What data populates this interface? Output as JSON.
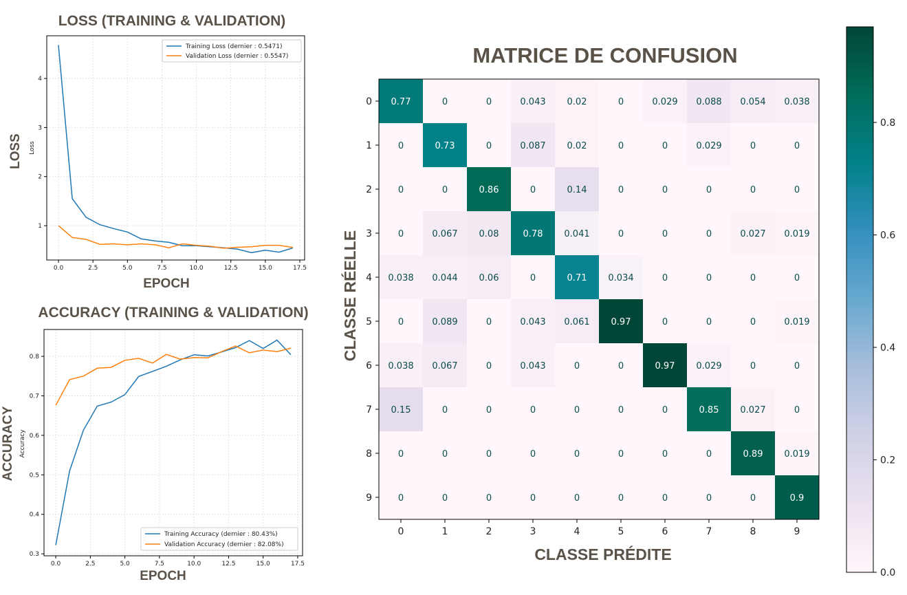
{
  "colors": {
    "training": "#1f77b4",
    "validation": "#ff7f0e",
    "title": "#5a5248",
    "cmap_low": "#fff7fb",
    "cmap_mid": "#3690c0",
    "cmap_high": "#014636"
  },
  "chart_data": [
    {
      "type": "line",
      "title": "LOSS (TRAINING & VALIDATION)",
      "xlabel": "EPOCH",
      "ylabel": "LOSS",
      "ylabel_small": "Loss",
      "xlim": [
        -0.85,
        17.85
      ],
      "ylim": [
        0.3,
        4.87
      ],
      "xticks": [
        0.0,
        2.5,
        5.0,
        7.5,
        10.0,
        12.5,
        15.0,
        17.5
      ],
      "xtick_labels": [
        "0.0",
        "2.5",
        "5.0",
        "7.5",
        "10.0",
        "12.5",
        "15.0",
        "17.5"
      ],
      "yticks": [
        1,
        2,
        3,
        4
      ],
      "ytick_labels": [
        "1",
        "2",
        "3",
        "4"
      ],
      "grid": true,
      "legend": "top-right",
      "x": [
        0,
        1,
        2,
        3,
        4,
        5,
        6,
        7,
        8,
        9,
        10,
        11,
        12,
        13,
        14,
        15,
        16,
        17
      ],
      "series": [
        {
          "name": "Training Loss (dernier : 0.5471)",
          "values": [
            4.68,
            1.55,
            1.17,
            1.02,
            0.94,
            0.87,
            0.73,
            0.69,
            0.66,
            0.59,
            0.59,
            0.57,
            0.55,
            0.52,
            0.45,
            0.5,
            0.46,
            0.5471
          ]
        },
        {
          "name": "Validation Loss (dernier : 0.5547)",
          "values": [
            1.0,
            0.76,
            0.72,
            0.62,
            0.63,
            0.61,
            0.63,
            0.61,
            0.55,
            0.63,
            0.6,
            0.58,
            0.54,
            0.56,
            0.57,
            0.6,
            0.6,
            0.5547
          ]
        }
      ]
    },
    {
      "type": "line",
      "title": "ACCURACY (TRAINING & VALIDATION)",
      "xlabel": "EPOCH",
      "ylabel": "ACCURACY",
      "ylabel_small": "Accuracy",
      "xlim": [
        -0.85,
        17.85
      ],
      "ylim": [
        0.295,
        0.868
      ],
      "xticks": [
        0.0,
        2.5,
        5.0,
        7.5,
        10.0,
        12.5,
        15.0,
        17.5
      ],
      "xtick_labels": [
        "0.0",
        "2.5",
        "5.0",
        "7.5",
        "10.0",
        "12.5",
        "15.0",
        "17.5"
      ],
      "yticks": [
        0.3,
        0.4,
        0.5,
        0.6,
        0.7,
        0.8
      ],
      "ytick_labels": [
        "0.3",
        "0.4",
        "0.5",
        "0.6",
        "0.7",
        "0.8"
      ],
      "grid": true,
      "legend": "bottom-right",
      "x": [
        0,
        1,
        2,
        3,
        4,
        5,
        6,
        7,
        8,
        9,
        10,
        11,
        12,
        13,
        14,
        15,
        16,
        17
      ],
      "series": [
        {
          "name": "Training Accuracy (dernier : 80.43%)",
          "values": [
            0.322,
            0.51,
            0.613,
            0.674,
            0.684,
            0.703,
            0.749,
            0.762,
            0.775,
            0.791,
            0.804,
            0.801,
            0.811,
            0.822,
            0.84,
            0.82,
            0.841,
            0.8043
          ]
        },
        {
          "name": "Validation Accuracy (dernier : 82.08%)",
          "values": [
            0.676,
            0.741,
            0.75,
            0.77,
            0.772,
            0.79,
            0.795,
            0.783,
            0.805,
            0.793,
            0.797,
            0.796,
            0.812,
            0.826,
            0.809,
            0.816,
            0.812,
            0.8208
          ]
        }
      ]
    },
    {
      "type": "heatmap",
      "title": "MATRICE DE CONFUSION",
      "xlabel": "CLASSE PRÉDITE",
      "ylabel": "CLASSE RÉELLE",
      "x_categories": [
        "0",
        "1",
        "2",
        "3",
        "4",
        "5",
        "6",
        "7",
        "8",
        "9"
      ],
      "y_categories": [
        "0",
        "1",
        "2",
        "3",
        "4",
        "5",
        "6",
        "7",
        "8",
        "9"
      ],
      "values": [
        [
          0.77,
          0,
          0,
          0.043,
          0.02,
          0,
          0.029,
          0.088,
          0.054,
          0.038
        ],
        [
          0,
          0.73,
          0,
          0.087,
          0.02,
          0,
          0,
          0.029,
          0,
          0
        ],
        [
          0,
          0,
          0.86,
          0,
          0.14,
          0,
          0,
          0,
          0,
          0
        ],
        [
          0,
          0.067,
          0.08,
          0.78,
          0.041,
          0,
          0,
          0,
          0.027,
          0.019
        ],
        [
          0.038,
          0.044,
          0.06,
          0,
          0.71,
          0.034,
          0,
          0,
          0,
          0
        ],
        [
          0,
          0.089,
          0,
          0.043,
          0.061,
          0.97,
          0,
          0,
          0,
          0.019
        ],
        [
          0.038,
          0.067,
          0,
          0.043,
          0,
          0,
          0.97,
          0.029,
          0,
          0
        ],
        [
          0.15,
          0,
          0,
          0,
          0,
          0,
          0,
          0.85,
          0.027,
          0
        ],
        [
          0,
          0,
          0,
          0,
          0,
          0,
          0,
          0,
          0.89,
          0.019
        ],
        [
          0,
          0,
          0,
          0,
          0,
          0,
          0,
          0,
          0,
          0.9
        ]
      ],
      "colorbar": {
        "range": [
          0,
          0.97
        ],
        "ticks": [
          0.0,
          0.2,
          0.4,
          0.6,
          0.8
        ],
        "tick_labels": [
          "0.0",
          "0.2",
          "0.4",
          "0.6",
          "0.8"
        ]
      }
    }
  ]
}
